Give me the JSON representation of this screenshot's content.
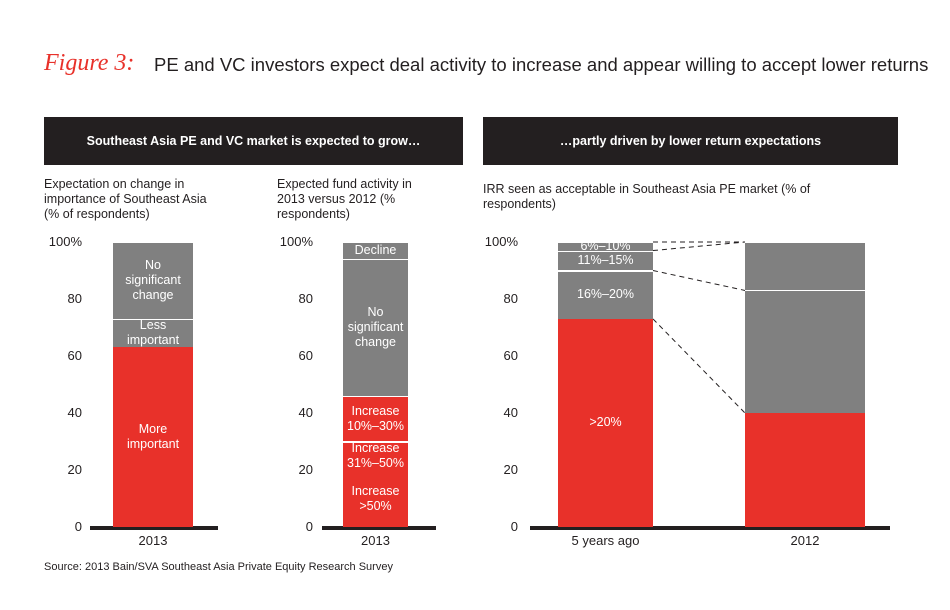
{
  "figure_label": "Figure 3:",
  "title": "PE and VC investors expect deal activity to increase and appear willing to accept lower returns",
  "panels": [
    "Southeast Asia PE and VC market is expected to grow…",
    "…partly driven by lower return expectations"
  ],
  "source": "Source: 2013 Bain/SVA Southeast Asia Private Equity Research Survey",
  "chart_data": [
    {
      "type": "bar",
      "stacked": true,
      "subtitle": "Expectation on change in importance of Southeast Asia (% of respondents)",
      "categories": [
        "2013"
      ],
      "ylim": [
        0,
        100
      ],
      "yticks": [
        0,
        20,
        40,
        60,
        80,
        {
          "value": 100,
          "label": "100%"
        }
      ],
      "series": [
        {
          "name": "More important",
          "color": "#e8312a",
          "values": [
            63
          ]
        },
        {
          "name": "Less important",
          "color": "#808080",
          "values": [
            10
          ]
        },
        {
          "name": "No significant change",
          "color": "#808080",
          "values": [
            27
          ]
        }
      ]
    },
    {
      "type": "bar",
      "stacked": true,
      "subtitle": "Expected fund activity in 2013 versus 2012 (% respondents)",
      "categories": [
        "2013"
      ],
      "ylim": [
        0,
        100
      ],
      "yticks": [
        0,
        20,
        40,
        60,
        80,
        {
          "value": 100,
          "label": "100%"
        }
      ],
      "series": [
        {
          "name": "Increase >50%",
          "color": "#e8312a",
          "values": [
            20
          ]
        },
        {
          "name": "Increase 31%–50%",
          "color": "#e8312a",
          "values": [
            10
          ]
        },
        {
          "name": "Increase 10%–30%",
          "color": "#e8312a",
          "values": [
            16
          ]
        },
        {
          "name": "No significant change",
          "color": "#808080",
          "values": [
            48
          ]
        },
        {
          "name": "Decline",
          "color": "#808080",
          "values": [
            6
          ]
        }
      ]
    },
    {
      "type": "bar",
      "stacked": true,
      "connectors": true,
      "subtitle": "IRR seen as acceptable in Southeast Asia PE market (% of respondents)",
      "categories": [
        "5 years ago",
        "2012"
      ],
      "ylim": [
        0,
        100
      ],
      "yticks": [
        0,
        20,
        40,
        60,
        80,
        {
          "value": 100,
          "label": "100%"
        }
      ],
      "series": [
        {
          "name": ">20%",
          "color": "#e8312a",
          "values": [
            73,
            40
          ]
        },
        {
          "name": "16%–20%",
          "color": "#808080",
          "values": [
            17,
            43
          ]
        },
        {
          "name": "11%–15%",
          "color": "#808080",
          "values": [
            7,
            17
          ]
        },
        {
          "name": "6%–10%",
          "color": "#808080",
          "values": [
            3,
            0
          ]
        }
      ]
    }
  ]
}
